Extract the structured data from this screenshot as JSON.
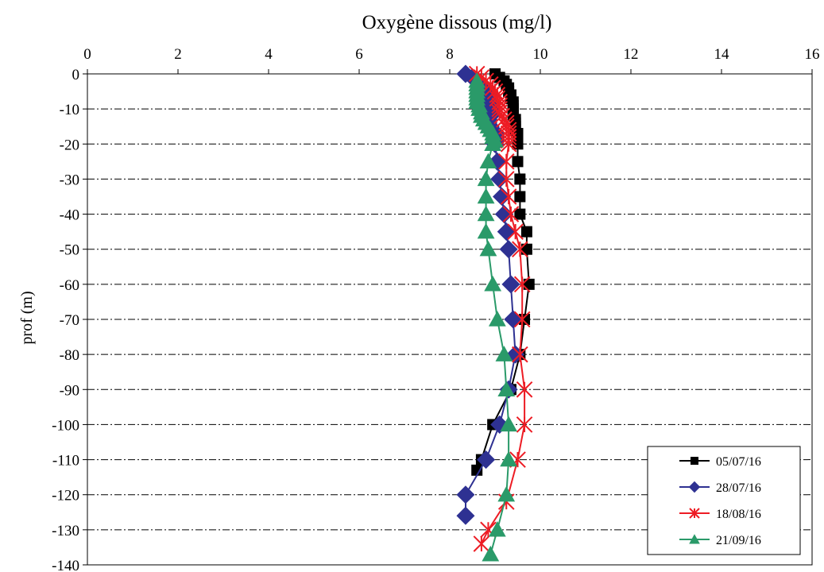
{
  "chart_data": {
    "type": "line",
    "title": "",
    "xlabel": "Oxygène dissous (mg/l)",
    "ylabel": "prof (m)",
    "xlim": [
      0,
      16
    ],
    "ylim": [
      -140,
      0
    ],
    "x_ticks": [
      0,
      2,
      4,
      6,
      8,
      10,
      12,
      14,
      16
    ],
    "y_ticks": [
      0,
      -10,
      -20,
      -30,
      -40,
      -50,
      -60,
      -70,
      -80,
      -90,
      -100,
      -110,
      -120,
      -130,
      -140
    ],
    "x_axis_position": "top",
    "grid": "horizontal dash-dot",
    "legend_position": "bottom-right",
    "series": [
      {
        "name": "05/07/16",
        "color": "#000000",
        "marker": "square",
        "points": [
          [
            9.0,
            0
          ],
          [
            9.1,
            -1
          ],
          [
            9.2,
            -2
          ],
          [
            9.25,
            -3
          ],
          [
            9.3,
            -4
          ],
          [
            9.3,
            -5
          ],
          [
            9.35,
            -6
          ],
          [
            9.35,
            -7
          ],
          [
            9.4,
            -8
          ],
          [
            9.4,
            -9
          ],
          [
            9.4,
            -10
          ],
          [
            9.4,
            -11
          ],
          [
            9.4,
            -12
          ],
          [
            9.45,
            -13
          ],
          [
            9.45,
            -14
          ],
          [
            9.45,
            -15
          ],
          [
            9.45,
            -16
          ],
          [
            9.5,
            -17
          ],
          [
            9.5,
            -18
          ],
          [
            9.5,
            -19
          ],
          [
            9.5,
            -20
          ],
          [
            9.5,
            -25
          ],
          [
            9.55,
            -30
          ],
          [
            9.55,
            -35
          ],
          [
            9.55,
            -40
          ],
          [
            9.7,
            -45
          ],
          [
            9.7,
            -50
          ],
          [
            9.75,
            -60
          ],
          [
            9.65,
            -70
          ],
          [
            9.55,
            -80
          ],
          [
            9.35,
            -90
          ],
          [
            8.95,
            -100
          ],
          [
            8.7,
            -110
          ],
          [
            8.6,
            -113
          ]
        ]
      },
      {
        "name": "28/07/16",
        "color": "#2e3192",
        "marker": "diamond",
        "points": [
          [
            8.35,
            0
          ],
          [
            8.5,
            -1
          ],
          [
            8.6,
            -2
          ],
          [
            8.7,
            -3
          ],
          [
            8.75,
            -4
          ],
          [
            8.8,
            -5
          ],
          [
            8.85,
            -6
          ],
          [
            8.85,
            -7
          ],
          [
            8.9,
            -8
          ],
          [
            8.9,
            -9
          ],
          [
            8.9,
            -10
          ],
          [
            8.9,
            -11
          ],
          [
            8.9,
            -12
          ],
          [
            8.85,
            -13
          ],
          [
            8.85,
            -14
          ],
          [
            8.9,
            -15
          ],
          [
            8.95,
            -16
          ],
          [
            9.0,
            -17
          ],
          [
            9.0,
            -18
          ],
          [
            9.0,
            -19
          ],
          [
            9.0,
            -20
          ],
          [
            9.05,
            -25
          ],
          [
            9.1,
            -30
          ],
          [
            9.15,
            -35
          ],
          [
            9.2,
            -40
          ],
          [
            9.25,
            -45
          ],
          [
            9.3,
            -50
          ],
          [
            9.35,
            -60
          ],
          [
            9.4,
            -70
          ],
          [
            9.45,
            -80
          ],
          [
            9.3,
            -90
          ],
          [
            9.1,
            -100
          ],
          [
            8.8,
            -110
          ],
          [
            8.35,
            -120
          ],
          [
            8.35,
            -126
          ]
        ]
      },
      {
        "name": "18/08/16",
        "color": "#ed1c24",
        "marker": "asterisk",
        "points": [
          [
            8.6,
            0
          ],
          [
            8.7,
            -1
          ],
          [
            8.8,
            -2
          ],
          [
            8.9,
            -3
          ],
          [
            8.95,
            -4
          ],
          [
            9.0,
            -5
          ],
          [
            9.05,
            -6
          ],
          [
            9.05,
            -7
          ],
          [
            9.1,
            -8
          ],
          [
            9.1,
            -9
          ],
          [
            9.1,
            -10
          ],
          [
            9.1,
            -11
          ],
          [
            9.15,
            -12
          ],
          [
            9.2,
            -13
          ],
          [
            9.25,
            -14
          ],
          [
            9.25,
            -15
          ],
          [
            9.3,
            -16
          ],
          [
            9.3,
            -17
          ],
          [
            9.3,
            -18
          ],
          [
            9.3,
            -19
          ],
          [
            9.3,
            -20
          ],
          [
            9.25,
            -25
          ],
          [
            9.25,
            -30
          ],
          [
            9.3,
            -35
          ],
          [
            9.35,
            -40
          ],
          [
            9.45,
            -45
          ],
          [
            9.55,
            -50
          ],
          [
            9.6,
            -60
          ],
          [
            9.6,
            -70
          ],
          [
            9.55,
            -80
          ],
          [
            9.65,
            -90
          ],
          [
            9.65,
            -100
          ],
          [
            9.5,
            -110
          ],
          [
            9.25,
            -122
          ],
          [
            8.85,
            -130
          ],
          [
            8.7,
            -134
          ]
        ]
      },
      {
        "name": "21/09/16",
        "color": "#2a9a69",
        "marker": "triangle",
        "points": [
          [
            8.6,
            -2
          ],
          [
            8.6,
            -3
          ],
          [
            8.6,
            -4
          ],
          [
            8.6,
            -5
          ],
          [
            8.6,
            -6
          ],
          [
            8.6,
            -7
          ],
          [
            8.6,
            -8
          ],
          [
            8.65,
            -9
          ],
          [
            8.65,
            -10
          ],
          [
            8.7,
            -11
          ],
          [
            8.7,
            -12
          ],
          [
            8.75,
            -13
          ],
          [
            8.8,
            -14
          ],
          [
            8.85,
            -15
          ],
          [
            8.9,
            -16
          ],
          [
            8.95,
            -17
          ],
          [
            8.95,
            -18
          ],
          [
            9.0,
            -19
          ],
          [
            8.95,
            -20
          ],
          [
            8.85,
            -25
          ],
          [
            8.8,
            -30
          ],
          [
            8.8,
            -35
          ],
          [
            8.8,
            -40
          ],
          [
            8.8,
            -45
          ],
          [
            8.85,
            -50
          ],
          [
            8.95,
            -60
          ],
          [
            9.05,
            -70
          ],
          [
            9.2,
            -80
          ],
          [
            9.25,
            -90
          ],
          [
            9.3,
            -100
          ],
          [
            9.3,
            -110
          ],
          [
            9.25,
            -120
          ],
          [
            9.05,
            -130
          ],
          [
            8.9,
            -137
          ]
        ]
      }
    ]
  }
}
